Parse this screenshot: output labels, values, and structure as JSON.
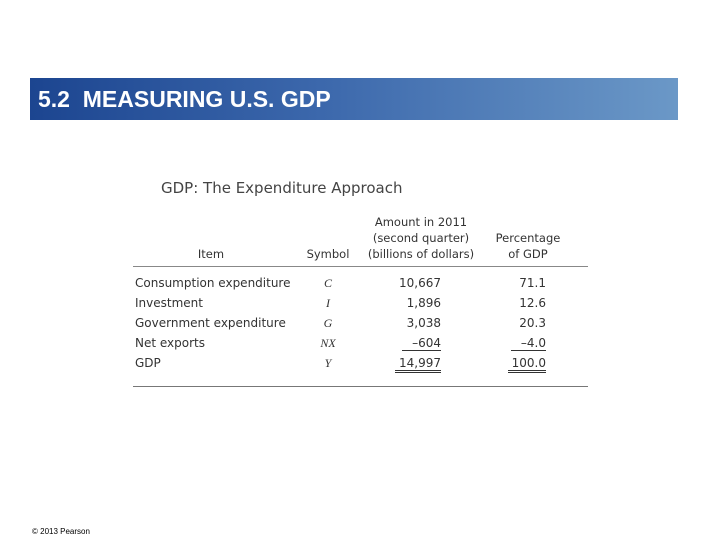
{
  "header": {
    "title": "5.2  MEASURING U.S. GDP"
  },
  "table": {
    "title": "GDP: The Expenditure Approach",
    "columns": [
      [
        "Item"
      ],
      [
        "Symbol"
      ],
      [
        "Amount in 2011",
        "(second quarter)",
        "(billions of dollars)"
      ],
      [
        "Percentage",
        "of GDP"
      ]
    ],
    "rows": [
      [
        "Consumption expenditure",
        "C",
        "10,667",
        "71.1"
      ],
      [
        "Investment",
        "I",
        "1,896",
        "12.6"
      ],
      [
        "Government expenditure",
        "G",
        "3,038",
        "20.3"
      ],
      [
        "Net exports",
        "NX",
        "–604",
        "–4.0"
      ],
      [
        "GDP",
        "Y",
        "14,997",
        "100.0"
      ]
    ]
  },
  "footer": {
    "copyright": "© 2013 Pearson"
  }
}
